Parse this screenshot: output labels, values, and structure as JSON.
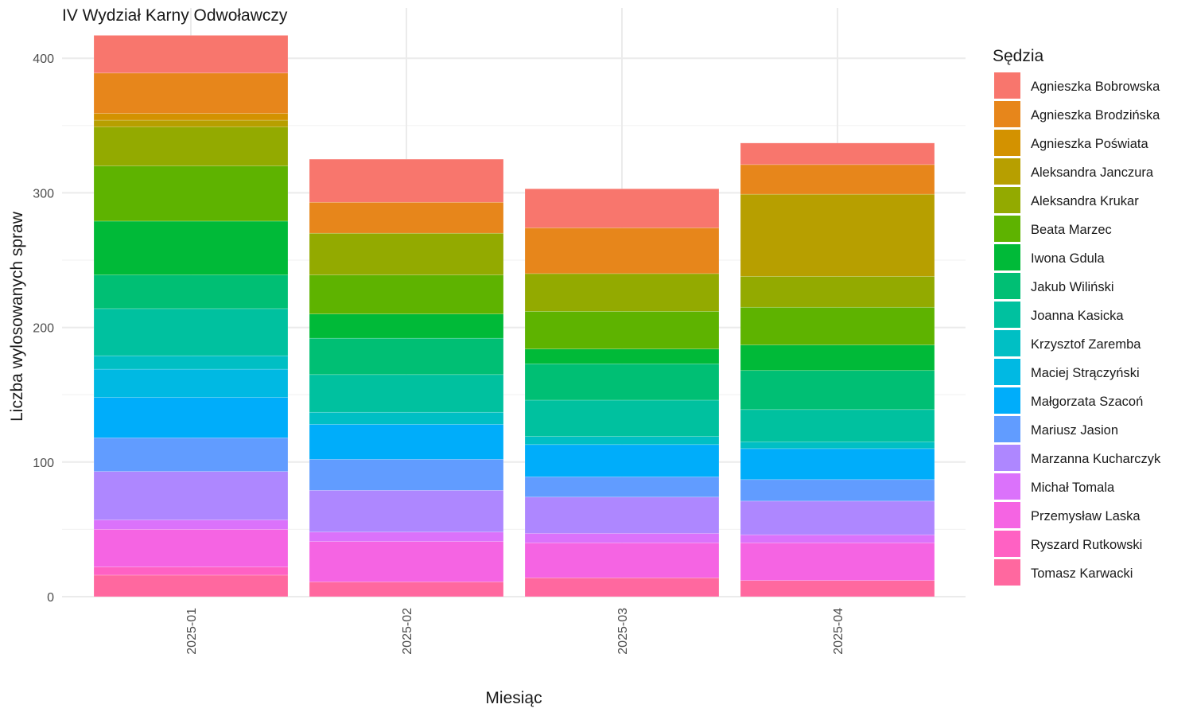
{
  "chart_data": {
    "type": "bar",
    "stacked": true,
    "title": "IV Wydział Karny Odwoławczy",
    "xlabel": "Miesiąc",
    "ylabel": "Liczba wylosowanych spraw",
    "categories": [
      "2025-01",
      "2025-02",
      "2025-03",
      "2025-04"
    ],
    "ylim": [
      0,
      420
    ],
    "yticks": [
      0,
      100,
      200,
      300,
      400
    ],
    "grid": true,
    "legend": {
      "title": "Sędzia",
      "position": "right"
    },
    "series": [
      {
        "name": "Agnieszka Bobrowska",
        "color": "#F8766D",
        "values": [
          28,
          32,
          29,
          16
        ]
      },
      {
        "name": "Agnieszka Brodzińska",
        "color": "#E7861B",
        "values": [
          30,
          23,
          34,
          22
        ]
      },
      {
        "name": "Agnieszka Poświata",
        "color": "#D39200",
        "values": [
          5,
          0,
          0,
          0
        ]
      },
      {
        "name": "Aleksandra Janczura",
        "color": "#B79F00",
        "values": [
          5,
          0,
          0,
          61
        ]
      },
      {
        "name": "Aleksandra Krukar",
        "color": "#93AA00",
        "values": [
          29,
          31,
          28,
          23
        ]
      },
      {
        "name": "Beata Marzec",
        "color": "#5EB300",
        "values": [
          41,
          29,
          28,
          28
        ]
      },
      {
        "name": "Iwona Gdula",
        "color": "#00BA38",
        "values": [
          40,
          18,
          11,
          19
        ]
      },
      {
        "name": "Jakub Wiliński",
        "color": "#00BF74",
        "values": [
          25,
          27,
          27,
          29
        ]
      },
      {
        "name": "Joanna Kasicka",
        "color": "#00C19F",
        "values": [
          35,
          28,
          27,
          24
        ]
      },
      {
        "name": "Krzysztof Zaremba",
        "color": "#00BFC4",
        "values": [
          10,
          9,
          6,
          5
        ]
      },
      {
        "name": "Maciej Strączyński",
        "color": "#00B9E3",
        "values": [
          21,
          0,
          0,
          0
        ]
      },
      {
        "name": "Małgorzata Szacoń",
        "color": "#00ADFA",
        "values": [
          30,
          26,
          24,
          23
        ]
      },
      {
        "name": "Mariusz Jasion",
        "color": "#619CFF",
        "values": [
          25,
          23,
          15,
          16
        ]
      },
      {
        "name": "Marzanna Kucharczyk",
        "color": "#AE87FF",
        "values": [
          36,
          31,
          27,
          25
        ]
      },
      {
        "name": "Michał Tomala",
        "color": "#DB72FB",
        "values": [
          7,
          7,
          7,
          6
        ]
      },
      {
        "name": "Przemysław Laska",
        "color": "#F564E3",
        "values": [
          28,
          30,
          26,
          28
        ]
      },
      {
        "name": "Ryszard Rutkowski",
        "color": "#FF61C3",
        "values": [
          6,
          0,
          0,
          0
        ]
      },
      {
        "name": "Tomasz Karwacki",
        "color": "#FF689F",
        "values": [
          16,
          11,
          14,
          12
        ]
      }
    ]
  }
}
